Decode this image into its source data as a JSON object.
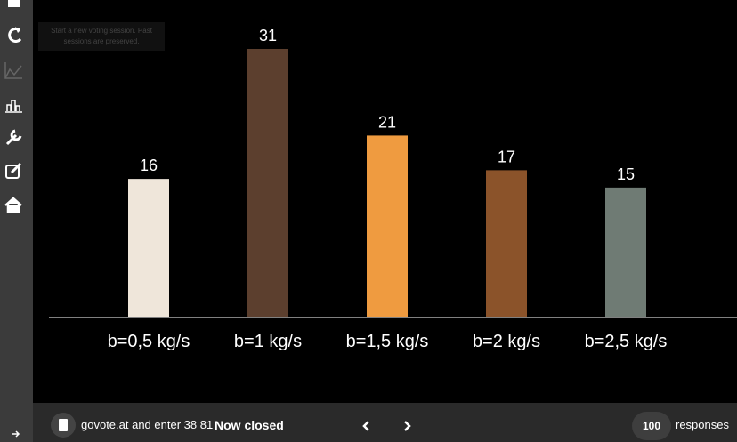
{
  "chart_data": {
    "type": "bar",
    "categories": [
      "b=0,5 kg/s",
      "b=1 kg/s",
      "b=1,5 kg/s",
      "b=2 kg/s",
      "b=2,5 kg/s"
    ],
    "values": [
      16,
      31,
      21,
      17,
      15
    ],
    "colors": [
      "#efe6da",
      "#5c3f2e",
      "#ef9b40",
      "#8b532a",
      "#6f7b74"
    ]
  },
  "tooltip": "Start a new voting session. Past sessions are preserved.",
  "footer": {
    "join_text": "govote.at and enter 38 81",
    "status": "Now closed",
    "responses_count": 100,
    "responses_label": "responses"
  }
}
